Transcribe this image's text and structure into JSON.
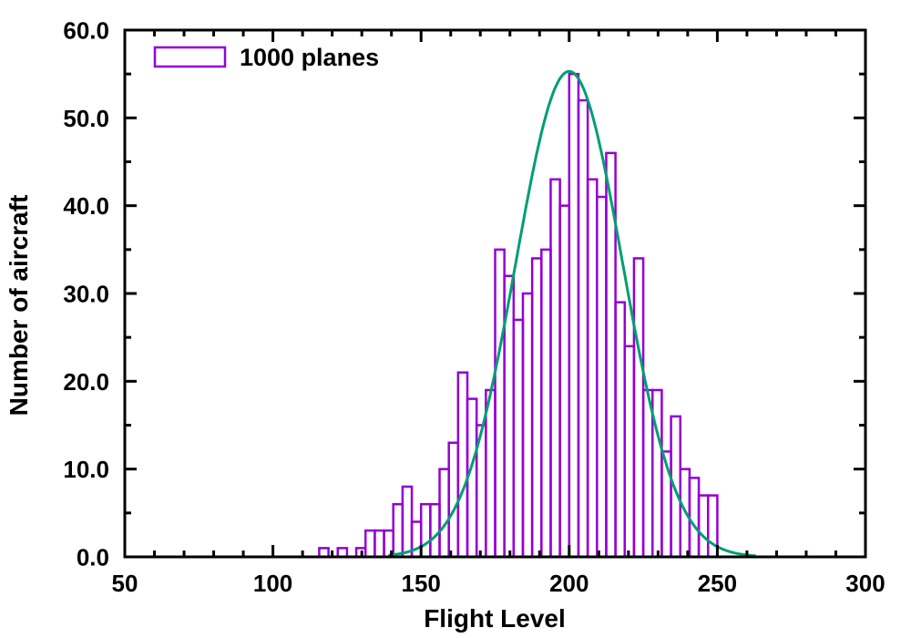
{
  "chart_data": {
    "type": "bar",
    "subtype": "histogram-with-fit-curve",
    "title": "",
    "xlabel": "Flight Level",
    "ylabel": "Number of aircraft",
    "xlim": [
      50,
      300
    ],
    "ylim": [
      0,
      60
    ],
    "grid": false,
    "background": "#ffffff",
    "axis_color": "#000000",
    "x_major_ticks": [
      50,
      100,
      150,
      200,
      250,
      300
    ],
    "x_major_labels": [
      "50",
      "100",
      "150",
      "200",
      "250",
      "300"
    ],
    "x_minor_step": 10,
    "y_major_ticks": [
      0,
      10,
      20,
      30,
      40,
      50,
      60
    ],
    "y_major_labels": [
      "0.0",
      "10.0",
      "20.0",
      "30.0",
      "40.0",
      "50.0",
      "60.0"
    ],
    "y_minor_step": 5,
    "legend": {
      "label": "1000 planes",
      "position": "top-left"
    },
    "series": [
      {
        "name": "1000 planes",
        "type": "bar",
        "color": "#9400d3",
        "fill": "none",
        "first_bin": 115.625,
        "bin_width": 3.125,
        "counts": [
          1,
          0,
          1,
          0,
          1,
          3,
          3,
          3,
          6,
          8,
          4,
          6,
          6,
          10,
          13,
          21,
          18,
          15,
          19,
          35,
          32,
          27,
          30,
          34,
          35,
          43,
          40,
          55,
          52,
          43,
          41,
          46,
          29,
          24,
          34,
          19,
          19,
          12,
          16,
          10,
          9,
          7,
          7
        ]
      },
      {
        "name": "gaussian-fit",
        "type": "line",
        "color": "#009e73",
        "amplitude": 55.3,
        "mean": 200,
        "sigma": 18,
        "x_range": [
          139,
          263
        ]
      }
    ]
  }
}
